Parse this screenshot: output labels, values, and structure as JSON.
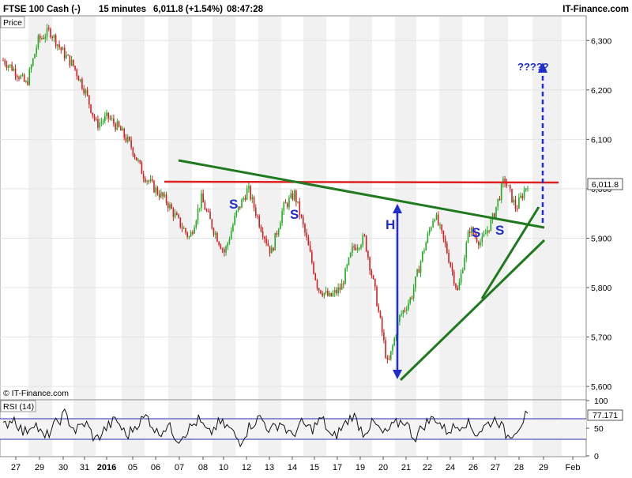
{
  "header": {
    "instrument": "FTSE 100 Cash (-)",
    "interval": "15 minutes",
    "last_change": "6,011.8 (+1.54%)",
    "time": "08:47:28",
    "brand": "IT-Finance.com"
  },
  "panels": {
    "price_label": "Price",
    "copyright": "© IT-Finance.com",
    "rsi_label": "RSI (14)"
  },
  "colors": {
    "up_candle": "#22aa22",
    "down_candle": "#cc2222",
    "trendline": "#1f7a1f",
    "resistance": "#e02020",
    "annotation": "#1f2ec8",
    "rsi_line": "#111111",
    "rsi_bands": "#2a2ab0",
    "band_fill": "#f1f1f1"
  },
  "chart_data": {
    "type": "candlestick",
    "price_axis": {
      "ylim": [
        5573,
        6350
      ],
      "ticks": [
        "6,300",
        "6,200",
        "6,100",
        "6,000",
        "5,900",
        "5,800",
        "5,700",
        "5,600"
      ],
      "tick_values": [
        6300,
        6200,
        6100,
        6000,
        5900,
        5800,
        5700,
        5600
      ]
    },
    "time_axis": {
      "labels": [
        "27",
        "29",
        "30",
        "31",
        "2016",
        "05",
        "06",
        "07",
        "08",
        "10",
        "12",
        "13",
        "14",
        "15",
        "17",
        "19",
        "20",
        "21",
        "22",
        "24",
        "26",
        "27",
        "28",
        "29",
        "Feb"
      ],
      "bold": [
        "2016"
      ]
    },
    "price_path": [
      {
        "x": "27",
        "y": 6260
      },
      {
        "x": "29",
        "y": 6240
      },
      {
        "x": "29",
        "y": 6210
      },
      {
        "x": "30",
        "y": 6300
      },
      {
        "x": "30",
        "y": 6320
      },
      {
        "x": "31",
        "y": 6280
      },
      {
        "x": "31",
        "y": 6250
      },
      {
        "x": "2016",
        "y": 6200
      },
      {
        "x": "2016",
        "y": 6130
      },
      {
        "x": "05",
        "y": 6145
      },
      {
        "x": "05",
        "y": 6120
      },
      {
        "x": "06",
        "y": 6085
      },
      {
        "x": "06",
        "y": 6030
      },
      {
        "x": "07",
        "y": 6000
      },
      {
        "x": "07",
        "y": 5975
      },
      {
        "x": "08",
        "y": 5935
      },
      {
        "x": "08",
        "y": 5900
      },
      {
        "x": "10",
        "y": 5980
      },
      {
        "x": "10",
        "y": 5920
      },
      {
        "x": "12",
        "y": 5870
      },
      {
        "x": "12",
        "y": 5950
      },
      {
        "x": "13",
        "y": 6000
      },
      {
        "x": "13",
        "y": 5930
      },
      {
        "x": "14",
        "y": 5870
      },
      {
        "x": "14",
        "y": 5960
      },
      {
        "x": "15",
        "y": 5990
      },
      {
        "x": "15",
        "y": 5900
      },
      {
        "x": "17",
        "y": 5800
      },
      {
        "x": "17",
        "y": 5780
      },
      {
        "x": "19",
        "y": 5800
      },
      {
        "x": "19",
        "y": 5880
      },
      {
        "x": "20",
        "y": 5900
      },
      {
        "x": "20",
        "y": 5780
      },
      {
        "x": "21",
        "y": 5640
      },
      {
        "x": "21",
        "y": 5740
      },
      {
        "x": "22",
        "y": 5780
      },
      {
        "x": "22",
        "y": 5870
      },
      {
        "x": "24",
        "y": 5950
      },
      {
        "x": "24",
        "y": 5880
      },
      {
        "x": "26",
        "y": 5790
      },
      {
        "x": "26",
        "y": 5920
      },
      {
        "x": "27",
        "y": 5890
      },
      {
        "x": "27",
        "y": 5940
      },
      {
        "x": "28",
        "y": 6020
      },
      {
        "x": "28",
        "y": 5960
      },
      {
        "x": "28",
        "y": 6011.8
      }
    ],
    "last_price": 6011.8,
    "annotations": {
      "labels": [
        "S",
        "S",
        "H",
        "S",
        "S"
      ],
      "question": "?????"
    },
    "rsi": {
      "ylim": [
        0,
        100
      ],
      "ticks": [
        "100",
        "50",
        "0"
      ],
      "tick_values": [
        100,
        50,
        0
      ],
      "bands": [
        70,
        30
      ],
      "last_value": "77.171",
      "path": [
        52,
        70,
        40,
        62,
        30,
        55,
        76,
        45,
        60,
        28,
        50,
        66,
        35,
        58,
        72,
        40,
        55,
        30,
        48,
        65,
        38,
        60,
        50,
        25,
        55,
        70,
        45,
        62,
        35,
        58,
        48,
        68,
        30,
        52,
        75,
        42,
        60,
        38,
        55,
        65,
        32,
        58,
        70,
        45,
        52,
        62,
        40,
        56,
        68,
        35,
        50,
        77
      ]
    }
  }
}
